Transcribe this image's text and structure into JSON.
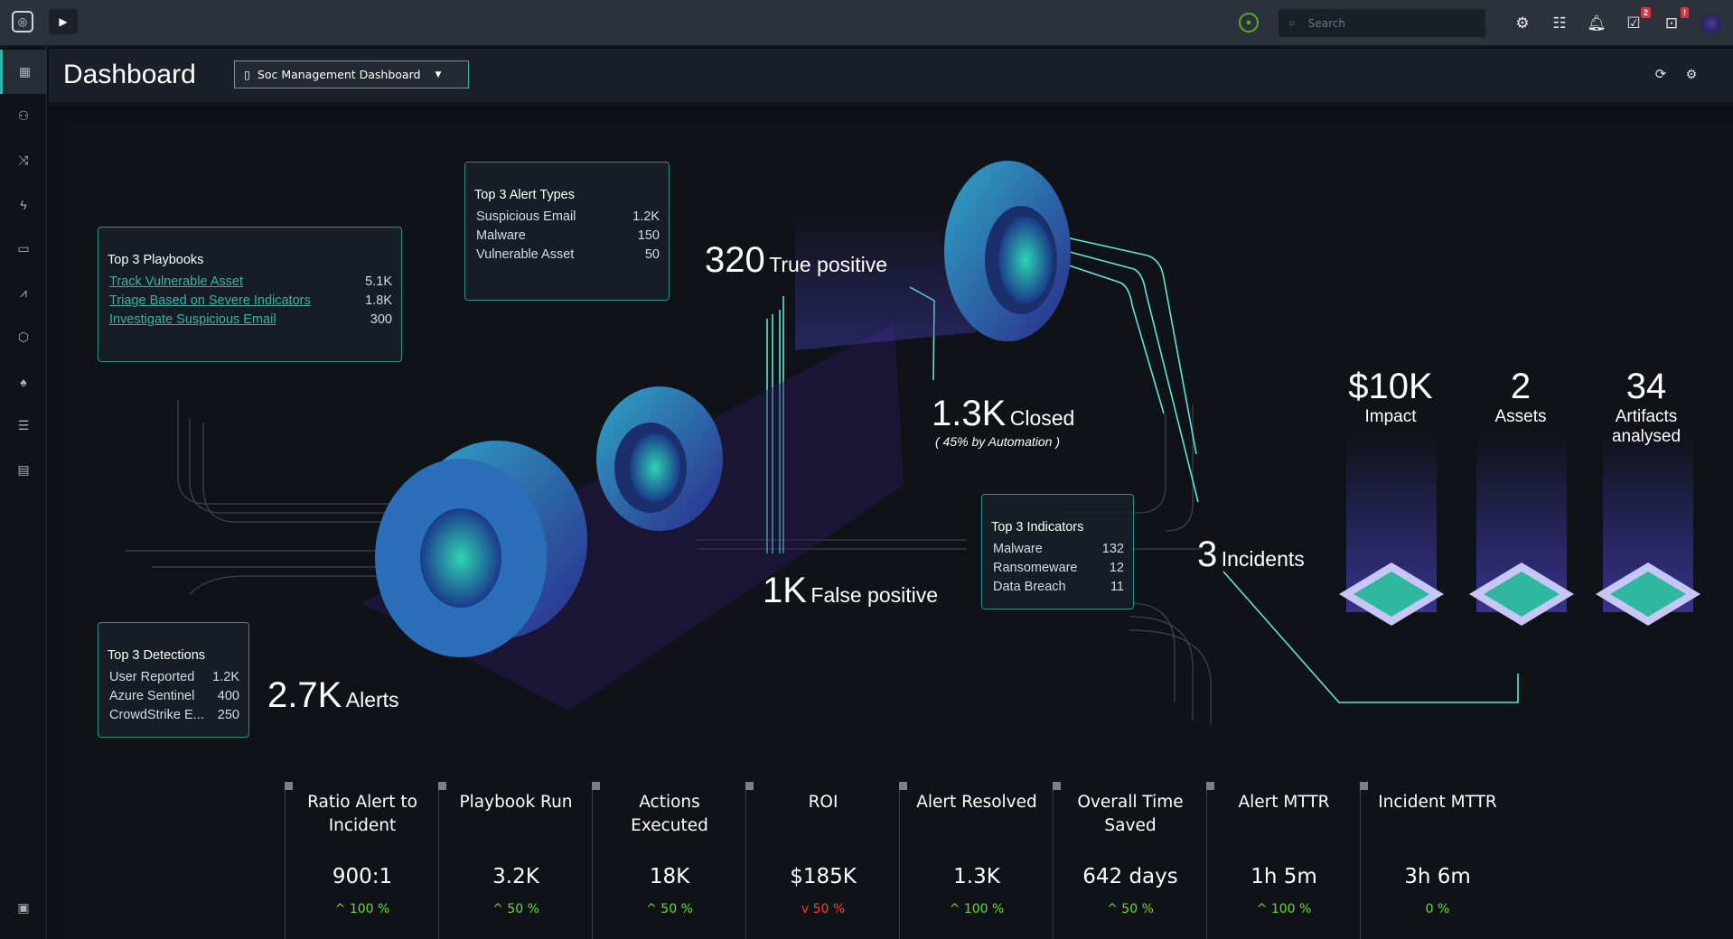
{
  "topbar": {
    "search_placeholder": "Search",
    "tasks_badge": "2",
    "settings_badge": "!"
  },
  "header": {
    "title": "Dashboard",
    "dashboard_select": "Soc Management Dashboard"
  },
  "sidebar": {
    "items": [
      "dashboard",
      "incidents",
      "playbooks",
      "actions",
      "assets",
      "analytics",
      "threat-intel",
      "hunting",
      "reports",
      "dossier"
    ]
  },
  "panels": {
    "playbooks": {
      "title": "Top 3 Playbooks",
      "items": [
        {
          "name": "Track Vulnerable Asset",
          "value": "5.1K"
        },
        {
          "name": "Triage Based on Severe Indicators",
          "value": "1.8K"
        },
        {
          "name": "Investigate Suspicious Email",
          "value": "300"
        }
      ]
    },
    "alert_types": {
      "title": "Top 3 Alert Types",
      "items": [
        {
          "name": "Suspicious Email",
          "value": "1.2K"
        },
        {
          "name": "Malware",
          "value": "150"
        },
        {
          "name": "Vulnerable Asset",
          "value": "50"
        }
      ]
    },
    "indicators": {
      "title": "Top 3 Indicators",
      "items": [
        {
          "name": "Malware",
          "value": "132"
        },
        {
          "name": "Ransomeware",
          "value": "12"
        },
        {
          "name": "Data Breach",
          "value": "11"
        }
      ]
    },
    "detections": {
      "title": "Top 3 Detections",
      "items": [
        {
          "name": "User Reported",
          "value": "1.2K"
        },
        {
          "name": "Azure Sentinel",
          "value": "400"
        },
        {
          "name": "CrowdStrike E...",
          "value": "250"
        }
      ]
    }
  },
  "flow": {
    "alerts": {
      "value": "2.7K",
      "label": "Alerts"
    },
    "true_positive": {
      "value": "320",
      "label": "True positive"
    },
    "false_positive": {
      "value": "1K",
      "label": "False positive"
    },
    "closed": {
      "value": "1.3K",
      "label": "Closed",
      "note": "( 45%  by Automation )"
    },
    "incidents": {
      "value": "3",
      "label": "Incidents"
    },
    "impact": {
      "value": "$10K",
      "label": "Impact"
    },
    "assets": {
      "value": "2",
      "label": "Assets"
    },
    "artifacts": {
      "value": "34",
      "label": "Artifacts analysed"
    }
  },
  "metrics": [
    {
      "title": "Ratio Alert to Incident",
      "value": "900:1",
      "change": "^ 100 %",
      "trend": "up"
    },
    {
      "title": "Playbook Run",
      "value": "3.2K",
      "change": "^ 50 %",
      "trend": "up"
    },
    {
      "title": "Actions Executed",
      "value": "18K",
      "change": "^ 50 %",
      "trend": "up"
    },
    {
      "title": "ROI",
      "value": "$185K",
      "change": "v 50 %",
      "trend": "down"
    },
    {
      "title": "Alert Resolved",
      "value": "1.3K",
      "change": "^ 100 %",
      "trend": "up"
    },
    {
      "title": "Overall Time Saved",
      "value": "642 days",
      "change": "^ 50 %",
      "trend": "up"
    },
    {
      "title": "Alert MTTR",
      "value": "1h 5m",
      "change": "^ 100 %",
      "trend": "up"
    },
    {
      "title": "Incident MTTR",
      "value": "3h 6m",
      "change": "0 %",
      "trend": "flat"
    }
  ]
}
